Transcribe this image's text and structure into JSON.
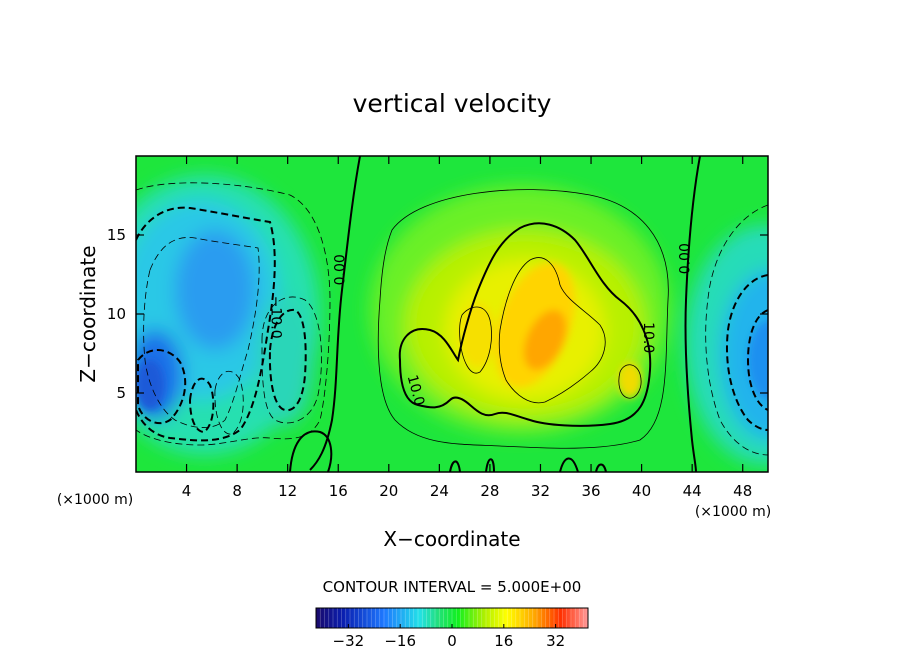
{
  "chart_data": {
    "type": "heatmap",
    "title": "vertical velocity",
    "xlabel": "X−coordinate",
    "ylabel": "Z−coordinate",
    "x_unit": "(×1000 m)",
    "y_unit": "(×1000 m)",
    "xlim": [
      0,
      50
    ],
    "ylim": [
      0,
      20
    ],
    "x_ticks": [
      4,
      8,
      12,
      16,
      20,
      24,
      28,
      32,
      36,
      40,
      44,
      48
    ],
    "y_ticks": [
      5,
      10,
      15
    ],
    "contour_interval_text": "CONTOUR INTERVAL = 5.000E+00",
    "contour_labels": [
      {
        "text": "0.00",
        "x": 16.5,
        "y": 12.8
      },
      {
        "text": "0.00",
        "x": 43.8,
        "y": 13.5
      },
      {
        "text": "−10.0",
        "x": 10.7,
        "y": 9.8
      },
      {
        "text": "10.0",
        "x": 40.2,
        "y": 8.5
      },
      {
        "text": "10.0",
        "x": 21.8,
        "y": 5.1
      }
    ],
    "colorbar": {
      "min": -42,
      "max": 42,
      "ticks": [
        -32,
        -16,
        0,
        16,
        32
      ],
      "colormap": [
        "#1a0a6b",
        "#0033cc",
        "#1e90ff",
        "#22e8e0",
        "#22e070",
        "#00ff00",
        "#aaf000",
        "#ffff00",
        "#ffaa00",
        "#ff3300",
        "#ff9090"
      ]
    },
    "field_features": [
      {
        "kind": "updraft-max",
        "x": 31.5,
        "y": 8.0,
        "w": 30
      },
      {
        "kind": "updraft-secondary",
        "x": 27.0,
        "y": 8.5,
        "w": 20
      },
      {
        "kind": "updraft-secondary",
        "x": 39.0,
        "y": 5.8,
        "w": 14
      },
      {
        "kind": "downdraft-min",
        "x": 2.0,
        "y": 6.0,
        "w": -25
      },
      {
        "kind": "downdraft",
        "x": 6.0,
        "y": 11.0,
        "w": -20
      },
      {
        "kind": "downdraft",
        "x": 49.0,
        "y": 7.0,
        "w": -18
      },
      {
        "kind": "downdraft-weak",
        "x": 12.0,
        "y": 6.5,
        "w": -10
      }
    ]
  }
}
